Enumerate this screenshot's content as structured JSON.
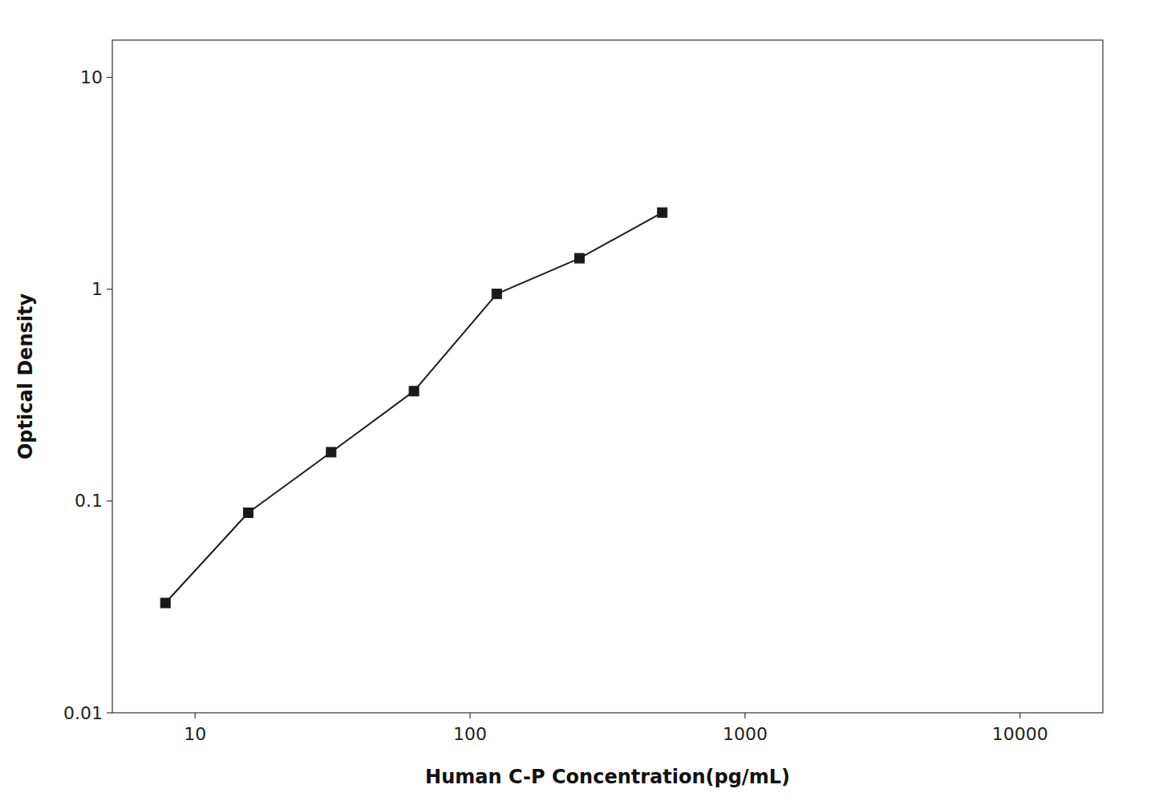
{
  "chart_data": {
    "type": "line",
    "x": [
      7.8,
      15.6,
      31.25,
      62.5,
      125,
      250,
      500
    ],
    "values": [
      0.033,
      0.088,
      0.17,
      0.33,
      0.95,
      1.4,
      2.3
    ],
    "color": "#1a1a1a",
    "marker": "square",
    "xlabel": "Human C-P Concentration(pg/mL)",
    "ylabel": "Optical Density",
    "xlim": [
      5,
      20000
    ],
    "ylim": [
      0.01,
      15
    ],
    "xticks": [
      10,
      100,
      1000,
      10000
    ],
    "yticks": [
      0.01,
      0.1,
      1,
      10
    ],
    "log": true,
    "grid": false
  }
}
